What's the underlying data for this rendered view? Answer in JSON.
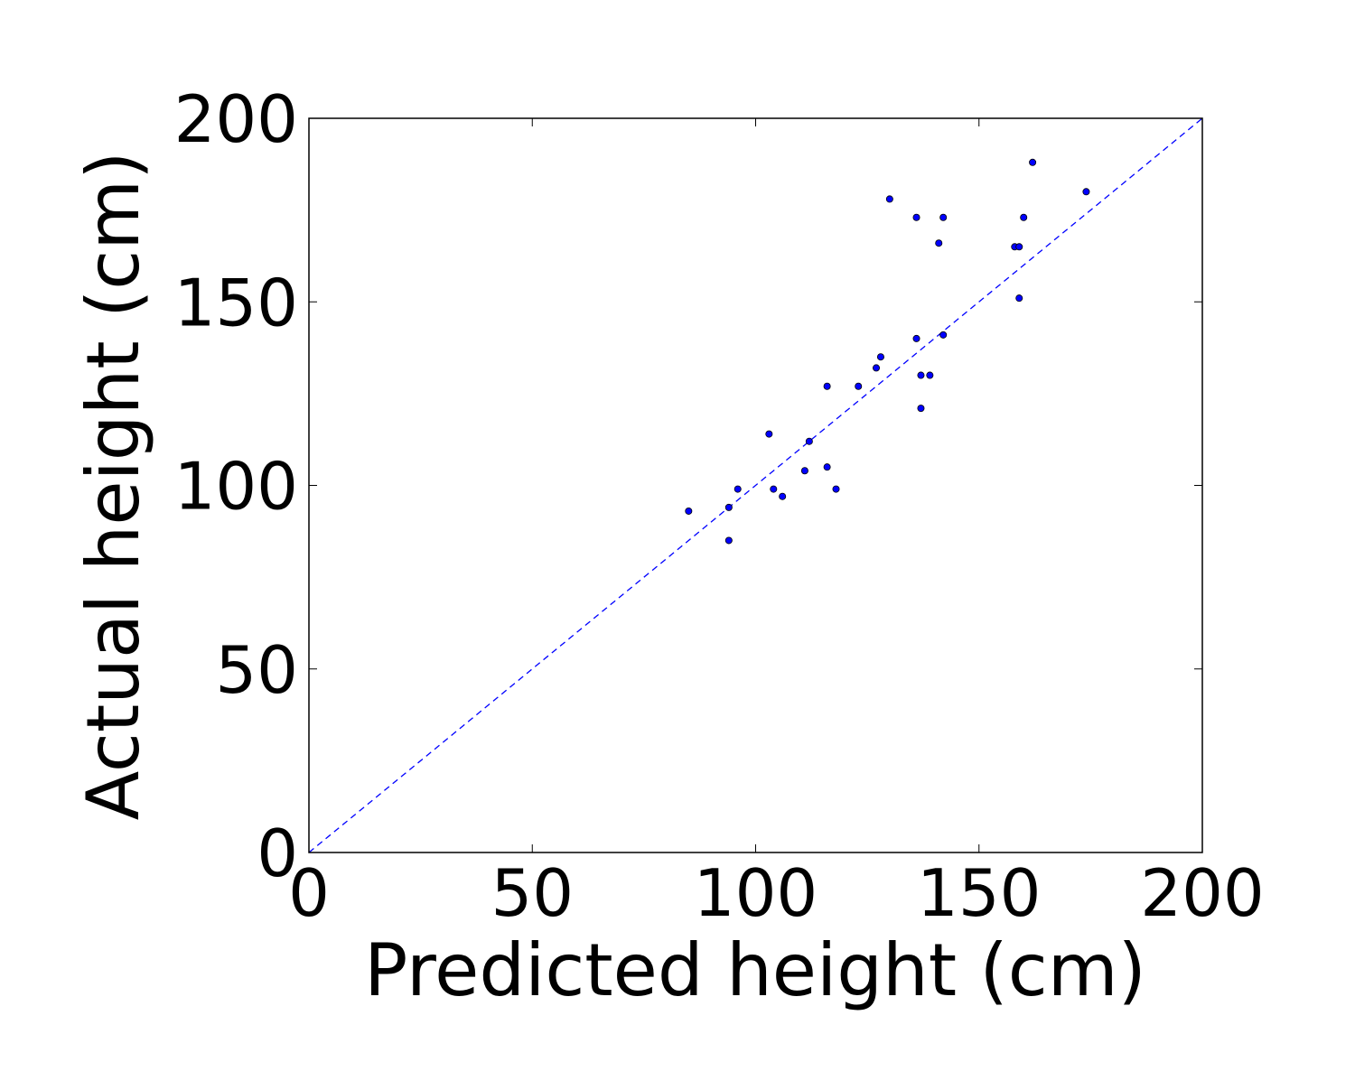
{
  "chart_data": {
    "type": "scatter",
    "title": "",
    "xlabel": "Predicted height (cm)",
    "ylabel": "Actual height (cm)",
    "xlim": [
      0,
      200
    ],
    "ylim": [
      0,
      200
    ],
    "xticks": [
      0,
      50,
      100,
      150,
      200
    ],
    "yticks": [
      0,
      50,
      100,
      150,
      200
    ],
    "xtick_labels": [
      "0",
      "50",
      "100",
      "150",
      "200"
    ],
    "ytick_labels": [
      "0",
      "50",
      "100",
      "150",
      "200"
    ],
    "grid": false,
    "legend": "none",
    "marker_color": "#0000ff",
    "reference_line": {
      "style": "dashed",
      "color": "#0000ff",
      "from": [
        0,
        0
      ],
      "to": [
        200,
        200
      ]
    },
    "x": [
      85,
      94,
      94,
      96,
      103,
      104,
      106,
      111,
      112,
      116,
      116,
      118,
      123,
      127,
      128,
      130,
      136,
      136,
      137,
      137,
      139,
      141,
      142,
      142,
      158,
      159,
      159,
      160,
      162,
      174
    ],
    "y": [
      93,
      94,
      85,
      99,
      114,
      99,
      97,
      104,
      112,
      127,
      105,
      99,
      127,
      132,
      135,
      178,
      173,
      140,
      130,
      121,
      130,
      166,
      173,
      141,
      165,
      165,
      151,
      173,
      188,
      180
    ]
  }
}
